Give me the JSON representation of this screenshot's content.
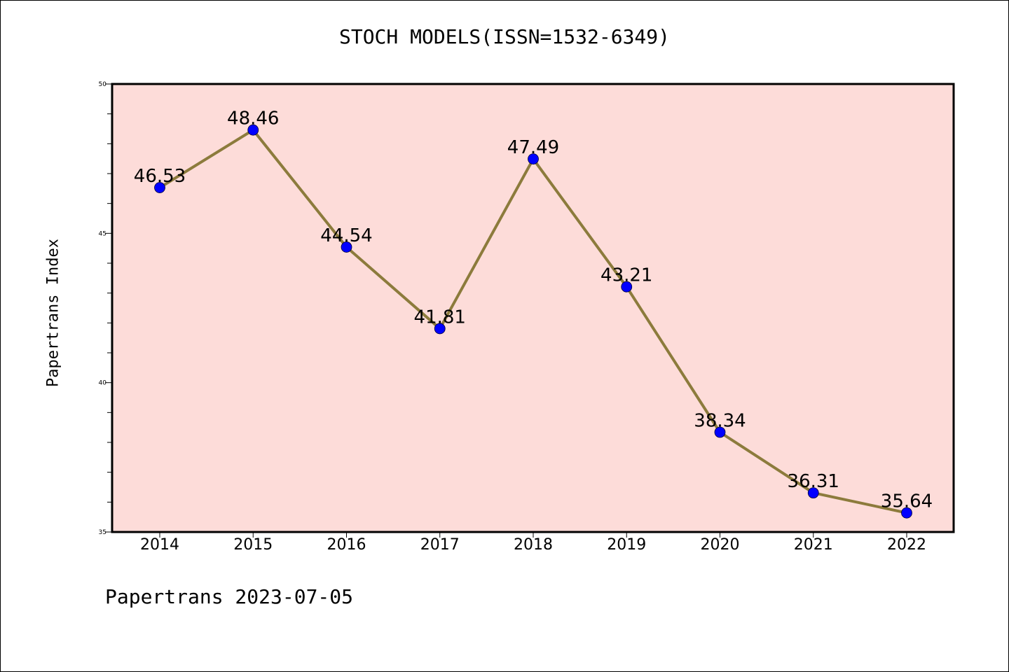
{
  "chart_data": {
    "type": "line",
    "title": "STOCH MODELS(ISSN=1532-6349)",
    "xlabel": "",
    "ylabel": "Papertrans Index",
    "categories": [
      "2014",
      "2015",
      "2016",
      "2017",
      "2018",
      "2019",
      "2020",
      "2021",
      "2022"
    ],
    "series": [
      {
        "values": [
          46.53,
          48.46,
          44.54,
          41.81,
          47.49,
          43.21,
          38.34,
          36.31,
          35.64
        ],
        "labels": [
          "46.53",
          "48.46",
          "44.54",
          "41.81",
          "47.49",
          "43.21",
          "38.34",
          "36.31",
          "35.64"
        ]
      }
    ],
    "ylim": [
      35,
      50
    ],
    "yticks": [
      "35",
      "40",
      "45",
      "50"
    ],
    "grid": false,
    "legend": "none",
    "colors": {
      "plot_background": "#fddcd9",
      "line": "#8c7b3c",
      "marker": "#0000ff"
    }
  },
  "footer": {
    "text": "Papertrans 2023-07-05"
  }
}
